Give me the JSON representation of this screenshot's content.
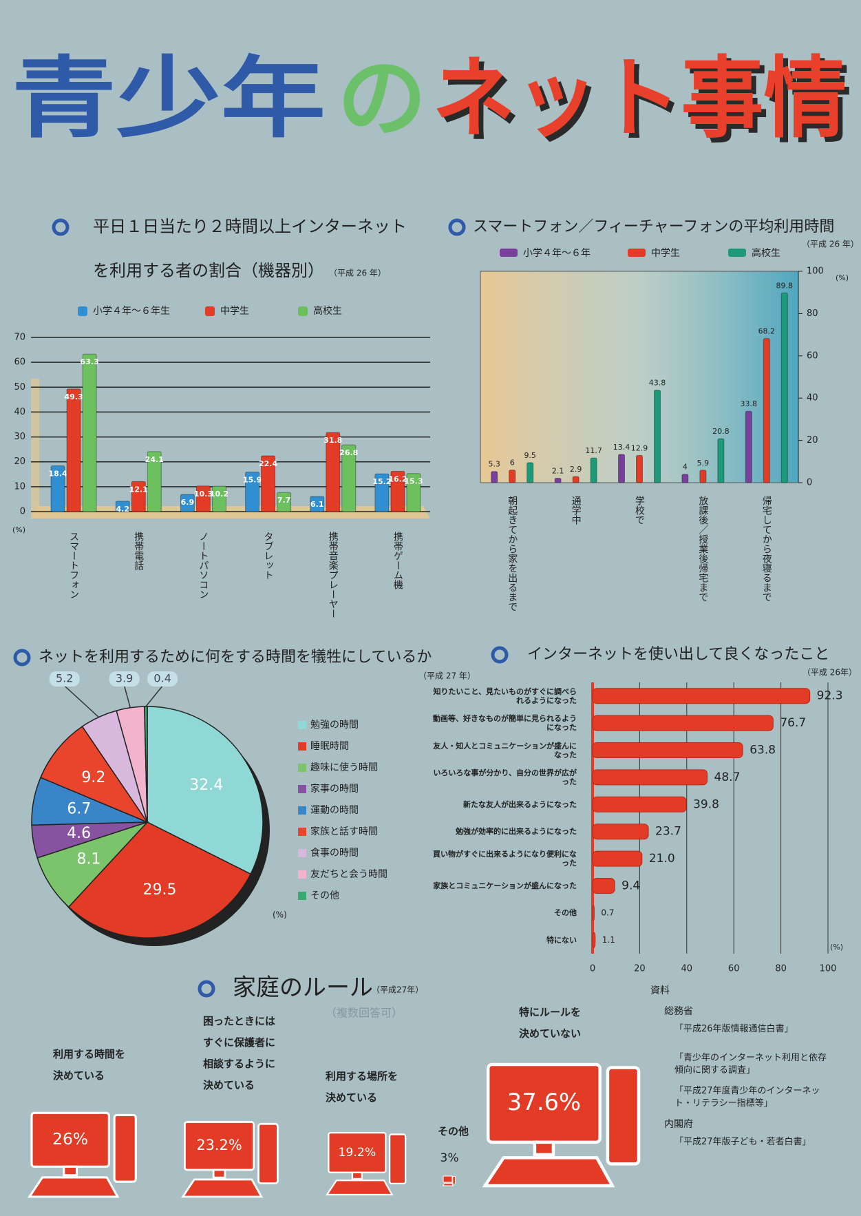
{
  "poster": {
    "title_parts": [
      "青少年",
      "の",
      "ネット事情"
    ]
  },
  "chart_data": [
    {
      "type": "bar",
      "title_lines": [
        "平日１日当たり２時間以上インターネット",
        "を利用する者の割合（機器別）"
      ],
      "subtitle": "（平成 26 年）",
      "categories": [
        "スマートフォン",
        "携帯電話",
        "ノートパソコン",
        "タブレット",
        "携帯音楽プレーヤー",
        "携帯ゲーム機"
      ],
      "series": [
        {
          "name": "小学４年～６年生",
          "color": "#2f8fd0",
          "values": [
            18.4,
            4.2,
            6.9,
            15.9,
            6.1,
            15.2
          ]
        },
        {
          "name": "中学生",
          "color": "#e23b26",
          "values": [
            49.3,
            12.1,
            10.3,
            22.4,
            31.8,
            16.2
          ]
        },
        {
          "name": "高校生",
          "color": "#6cc05e",
          "values": [
            63.3,
            24.1,
            10.2,
            7.7,
            26.8,
            15.3
          ]
        }
      ],
      "ylim": [
        0,
        70
      ],
      "yticks": [
        0,
        10,
        20,
        30,
        40,
        50,
        60,
        70
      ],
      "y_unit": "(%)",
      "grid": true,
      "yaxis_position": "left",
      "value_label_position": "inside",
      "category_label_orientation": "vertical"
    },
    {
      "type": "bar",
      "title_lines": [
        "スマートフォン／フィーチャーフォンの平均利用時間"
      ],
      "subtitle": "（平成 26 年）",
      "categories": [
        "朝起きてから家を出るまで",
        "通学中",
        "学校で",
        "放課後／授業後帰宅まで",
        "帰宅してから夜寝るまで"
      ],
      "series": [
        {
          "name": "小学４年～６年",
          "color": "#7a3e9d",
          "values": [
            5.3,
            2.1,
            13.4,
            4,
            33.8
          ]
        },
        {
          "name": "中学生",
          "color": "#e23b26",
          "values": [
            6,
            2.9,
            12.9,
            5.9,
            68.2
          ]
        },
        {
          "name": "高校生",
          "color": "#1f9a78",
          "values": [
            9.5,
            11.7,
            43.8,
            20.8,
            89.8
          ]
        }
      ],
      "ylim": [
        0,
        100
      ],
      "yticks": [
        0,
        20,
        40,
        60,
        80,
        100
      ],
      "y_unit": "(%)",
      "grid": false,
      "yaxis_position": "right",
      "value_label_position": "above",
      "category_label_orientation": "vertical"
    },
    {
      "type": "pie",
      "title_lines": [
        "ネットを利用するために何をする時間を犠牲にしているか"
      ],
      "subtitle": "（平成 27 年）",
      "categories": [
        "勉強の時間",
        "睡眠時間",
        "趣味に使う時間",
        "家事の時間",
        "運動の時間",
        "家族と話す時間",
        "食事の時間",
        "友だちと会う時間",
        "その他"
      ],
      "values": [
        32.4,
        29.5,
        8.1,
        4.6,
        6.7,
        9.2,
        5.2,
        3.9,
        0.4
      ],
      "colors": [
        "#8fd8d6",
        "#e23b26",
        "#7cc46c",
        "#87529f",
        "#3a85c8",
        "#e8452c",
        "#d8b8dc",
        "#f2b4cc",
        "#3aa872"
      ],
      "unit": "(%)"
    },
    {
      "type": "barh",
      "title_lines": [
        "インターネットを使い出して良くなったこと"
      ],
      "subtitle": "（平成 26年）",
      "categories": [
        "知りたいこと、見たいものがすぐに調べられるようになった",
        "動画等、好きなものが簡単に見られるようになった",
        "友人・知人とコミュニケーションが盛んになった",
        "いろいろな事が分かり、自分の世界が広がった",
        "新たな友人が出来るようになった",
        "勉強が効率的に出来るようになった",
        "買い物がすぐに出来るようになり便利になった",
        "家族とコミュニケーションが盛んになった",
        "その他",
        "特にない"
      ],
      "values": [
        92.3,
        76.7,
        63.8,
        48.7,
        39.8,
        23.7,
        21,
        9.4,
        0.7,
        1.1
      ],
      "value_labels": [
        "92.3",
        "76.7",
        "63.8",
        "48.7",
        "39.8",
        "23.7",
        "21.0",
        "9.4",
        "0.7",
        "1.1"
      ],
      "color": "#e23b26",
      "xlim": [
        0,
        100
      ],
      "xticks": [
        0,
        20,
        40,
        60,
        80,
        100
      ],
      "x_unit": "(%)",
      "grid": true
    },
    {
      "type": "pictogram",
      "title_lines": [
        "家庭のルール"
      ],
      "subtitle": "（平成27年）",
      "note": "（複数回答可）",
      "categories": [
        "利用する時間を決めている",
        "困ったときにはすぐに保護者に相談するように決めている",
        "利用する場所を決めている",
        "その他",
        "特にルールを決めていない"
      ],
      "values": [
        26,
        23.2,
        19.2,
        3,
        37.6
      ],
      "value_labels": [
        "26%",
        "23.2%",
        "19.2%",
        "3%",
        "37.6%"
      ],
      "color": "#e23b26"
    }
  ],
  "sources": {
    "heading": "資料",
    "groups": [
      {
        "agency": "総務省",
        "documents": [
          "「平成26年版情報通信白書」",
          "「青少年のインターネット利用と依存傾向に関する調査」",
          "「平成27年度青少年のインターネット・リテラシー指標等」"
        ]
      },
      {
        "agency": "内閣府",
        "documents": [
          "「平成27年版子ども・若者白書」"
        ]
      }
    ]
  }
}
